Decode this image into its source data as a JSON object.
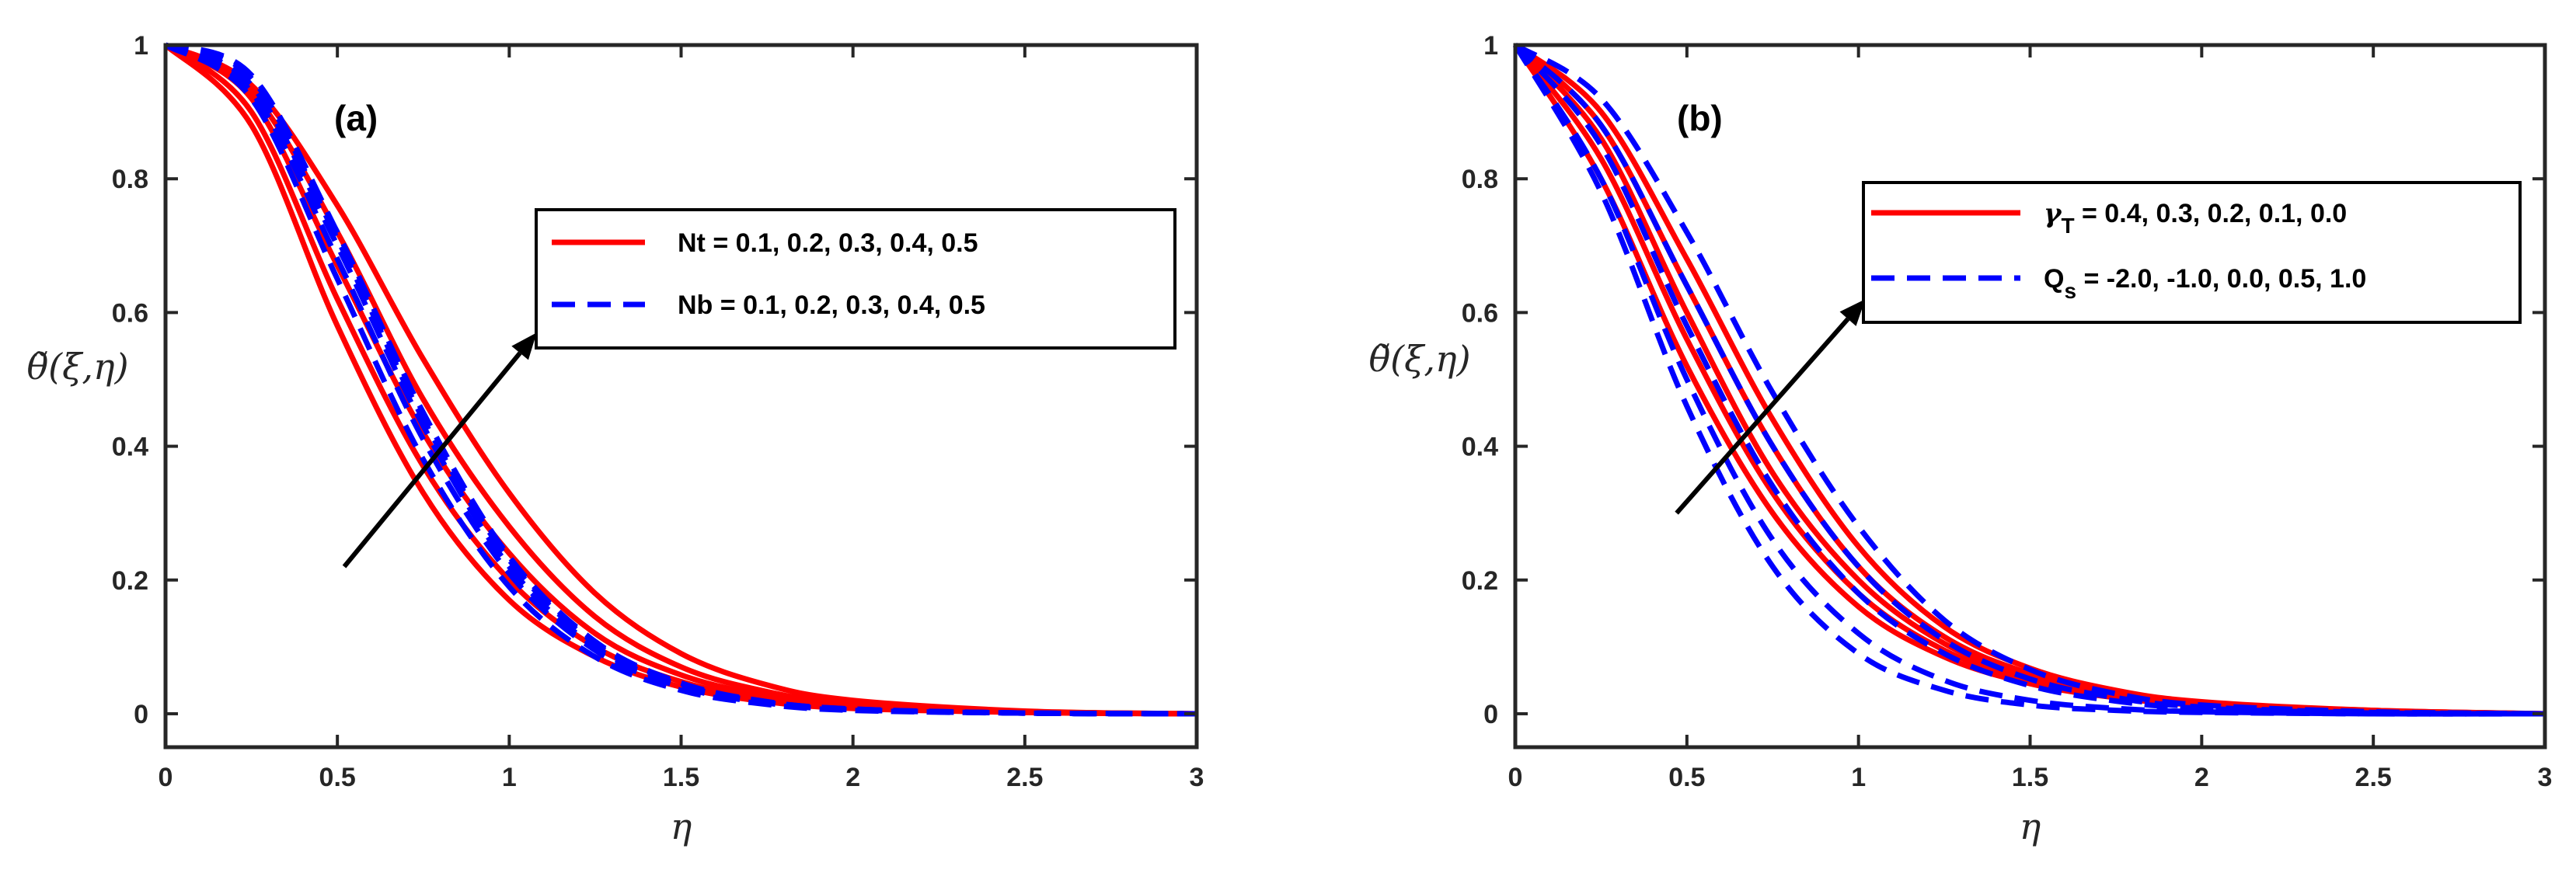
{
  "chart_data": [
    {
      "type": "line",
      "panel_label": "(a)",
      "xlabel": "η",
      "ylabel": "θ̃(ξ,η)",
      "xlim": [
        0,
        3
      ],
      "ylim": [
        -0.05,
        1
      ],
      "xticks": [
        "0",
        "0.5",
        "1",
        "1.5",
        "2",
        "2.5",
        "3"
      ],
      "yticks": [
        "0",
        "0.2",
        "0.4",
        "0.6",
        "0.8",
        "1"
      ],
      "legend": [
        {
          "label": "Nt = 0.1, 0.2, 0.3, 0.4, 0.5",
          "color": "#ff0000",
          "style": "solid"
        },
        {
          "label": "Nb = 0.1, 0.2, 0.3, 0.4, 0.5",
          "color": "#0000ff",
          "style": "dashed"
        }
      ],
      "legend_position": "upper-right",
      "arrow": {
        "from": [
          0.52,
          0.22
        ],
        "to": [
          1.08,
          0.57
        ]
      },
      "x": [
        0,
        0.25,
        0.5,
        0.75,
        1,
        1.25,
        1.5,
        1.75,
        2,
        2.5,
        3
      ],
      "series": [
        {
          "name": "Nt = 0.1",
          "group": "Nt",
          "color": "#ff0000",
          "style": "solid",
          "values": [
            1,
            0.88,
            0.58,
            0.33,
            0.17,
            0.085,
            0.04,
            0.018,
            0.008,
            0.002,
            0
          ]
        },
        {
          "name": "Nt = 0.2",
          "group": "Nt",
          "color": "#ff0000",
          "style": "solid",
          "values": [
            1,
            0.9,
            0.62,
            0.37,
            0.2,
            0.1,
            0.048,
            0.022,
            0.01,
            0.002,
            0
          ]
        },
        {
          "name": "Nt = 0.3",
          "group": "Nt",
          "color": "#ff0000",
          "style": "solid",
          "values": [
            1,
            0.92,
            0.67,
            0.42,
            0.24,
            0.12,
            0.058,
            0.027,
            0.012,
            0.003,
            0
          ]
        },
        {
          "name": "Nt = 0.4",
          "group": "Nt",
          "color": "#ff0000",
          "style": "solid",
          "values": [
            1,
            0.93,
            0.72,
            0.47,
            0.28,
            0.145,
            0.07,
            0.033,
            0.015,
            0.003,
            0
          ]
        },
        {
          "name": "Nt = 0.5",
          "group": "Nt",
          "color": "#ff0000",
          "style": "solid",
          "values": [
            1,
            0.94,
            0.76,
            0.53,
            0.33,
            0.18,
            0.09,
            0.043,
            0.02,
            0.004,
            0
          ]
        },
        {
          "name": "Nb = 0.1",
          "group": "Nb",
          "color": "#0000ff",
          "style": "dashed",
          "values": [
            1,
            0.92,
            0.65,
            0.38,
            0.19,
            0.085,
            0.035,
            0.014,
            0.005,
            0.001,
            0
          ]
        },
        {
          "name": "Nb = 0.2",
          "group": "Nb",
          "color": "#0000ff",
          "style": "dashed",
          "values": [
            1,
            0.93,
            0.68,
            0.41,
            0.21,
            0.095,
            0.04,
            0.016,
            0.006,
            0.001,
            0
          ]
        },
        {
          "name": "Nb = 0.3",
          "group": "Nb",
          "color": "#0000ff",
          "style": "dashed",
          "values": [
            1,
            0.94,
            0.7,
            0.43,
            0.22,
            0.1,
            0.043,
            0.017,
            0.006,
            0.001,
            0
          ]
        },
        {
          "name": "Nb = 0.4",
          "group": "Nb",
          "color": "#0000ff",
          "style": "dashed",
          "values": [
            1,
            0.95,
            0.71,
            0.44,
            0.23,
            0.105,
            0.045,
            0.018,
            0.007,
            0.001,
            0
          ]
        },
        {
          "name": "Nb = 0.5",
          "group": "Nb",
          "color": "#0000ff",
          "style": "dashed",
          "values": [
            1,
            0.955,
            0.72,
            0.45,
            0.235,
            0.108,
            0.046,
            0.018,
            0.007,
            0.001,
            0
          ]
        }
      ]
    },
    {
      "type": "line",
      "panel_label": "(b)",
      "xlabel": "η",
      "ylabel": "θ̃(ξ,η)",
      "xlim": [
        0,
        3
      ],
      "ylim": [
        -0.05,
        1
      ],
      "xticks": [
        "0",
        "0.5",
        "1",
        "1.5",
        "2",
        "2.5",
        "3"
      ],
      "yticks": [
        "0",
        "0.2",
        "0.4",
        "0.6",
        "0.8",
        "1"
      ],
      "legend": [
        {
          "label_main": "γ",
          "label_sub": "T",
          "label_rest": " = 0.4, 0.3, 0.2, 0.1, 0.0",
          "color": "#ff0000",
          "style": "solid"
        },
        {
          "label_main": "Q",
          "label_sub": "s",
          "label_rest": " = -2.0, -1.0, 0.0, 0.5, 1.0",
          "color": "#0000ff",
          "style": "dashed"
        }
      ],
      "legend_position": "upper-right",
      "arrow": {
        "from": [
          0.47,
          0.3
        ],
        "to": [
          1.02,
          0.62
        ]
      },
      "x": [
        0,
        0.25,
        0.5,
        0.75,
        1,
        1.25,
        1.5,
        1.75,
        2,
        2.5,
        3
      ],
      "series": [
        {
          "name": "γT = 0.4",
          "group": "gammaT",
          "color": "#ff0000",
          "style": "solid",
          "values": [
            1,
            0.8,
            0.52,
            0.3,
            0.16,
            0.085,
            0.045,
            0.024,
            0.013,
            0.004,
            0
          ]
        },
        {
          "name": "γT = 0.3",
          "group": "gammaT",
          "color": "#ff0000",
          "style": "solid",
          "values": [
            1,
            0.83,
            0.56,
            0.33,
            0.18,
            0.095,
            0.05,
            0.026,
            0.014,
            0.004,
            0
          ]
        },
        {
          "name": "γT = 0.2",
          "group": "gammaT",
          "color": "#ff0000",
          "style": "solid",
          "values": [
            1,
            0.86,
            0.6,
            0.36,
            0.2,
            0.105,
            0.055,
            0.028,
            0.015,
            0.004,
            0
          ]
        },
        {
          "name": "γT = 0.1",
          "group": "gammaT",
          "color": "#ff0000",
          "style": "solid",
          "values": [
            1,
            0.88,
            0.64,
            0.4,
            0.22,
            0.115,
            0.06,
            0.031,
            0.016,
            0.005,
            0
          ]
        },
        {
          "name": "γT = 0.0",
          "group": "gammaT",
          "color": "#ff0000",
          "style": "solid",
          "values": [
            1,
            0.9,
            0.68,
            0.44,
            0.25,
            0.13,
            0.068,
            0.035,
            0.018,
            0.005,
            0
          ]
        },
        {
          "name": "Qs = -2.0",
          "group": "Qs",
          "color": "#0000ff",
          "style": "dashed",
          "values": [
            1,
            0.78,
            0.46,
            0.22,
            0.09,
            0.035,
            0.013,
            0.005,
            0.002,
            0,
            0
          ]
        },
        {
          "name": "Qs = -1.0",
          "group": "Qs",
          "color": "#0000ff",
          "style": "dashed",
          "values": [
            1,
            0.8,
            0.5,
            0.26,
            0.12,
            0.05,
            0.02,
            0.008,
            0.003,
            0,
            0
          ]
        },
        {
          "name": "Qs = 0.0",
          "group": "Qs",
          "color": "#0000ff",
          "style": "dashed",
          "values": [
            1,
            0.85,
            0.58,
            0.34,
            0.18,
            0.09,
            0.042,
            0.019,
            0.008,
            0.001,
            0
          ]
        },
        {
          "name": "Qs = 0.5",
          "group": "Qs",
          "color": "#0000ff",
          "style": "dashed",
          "values": [
            1,
            0.88,
            0.64,
            0.4,
            0.22,
            0.11,
            0.052,
            0.024,
            0.01,
            0.002,
            0
          ]
        },
        {
          "name": "Qs = 1.0",
          "group": "Qs",
          "color": "#0000ff",
          "style": "dashed",
          "values": [
            1,
            0.92,
            0.72,
            0.48,
            0.28,
            0.14,
            0.066,
            0.03,
            0.013,
            0.003,
            0
          ]
        }
      ]
    }
  ]
}
